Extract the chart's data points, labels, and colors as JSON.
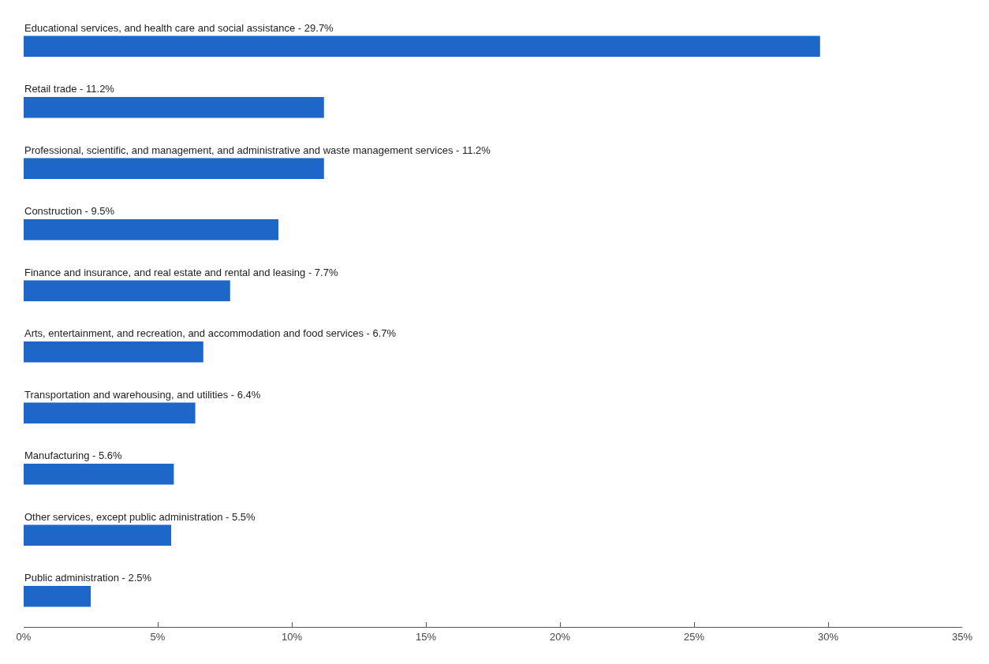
{
  "chart_data": {
    "type": "bar",
    "orientation": "horizontal",
    "categories": [
      "Educational services, and health care and social assistance - 29.7%",
      "Retail trade - 11.2%",
      "Professional, scientific, and management, and administrative and waste management services - 11.2%",
      "Construction - 9.5%",
      "Finance and insurance, and real estate and rental and leasing - 7.7%",
      "Arts, entertainment, and recreation, and accommodation and food services - 6.7%",
      "Transportation and warehousing, and utilities - 6.4%",
      "Manufacturing - 5.6%",
      "Other services, except public administration - 5.5%",
      "Public administration - 2.5%"
    ],
    "values": [
      29.7,
      11.2,
      11.2,
      9.5,
      7.7,
      6.7,
      6.4,
      5.6,
      5.5,
      2.5
    ],
    "color": "#1f66c9",
    "xlim": [
      0,
      35
    ],
    "xticks": [
      {
        "value": 0,
        "label": "0%"
      },
      {
        "value": 5,
        "label": "5%"
      },
      {
        "value": 10,
        "label": "10%"
      },
      {
        "value": 15,
        "label": "15%"
      },
      {
        "value": 20,
        "label": "20%"
      },
      {
        "value": 25,
        "label": "25%"
      },
      {
        "value": 30,
        "label": "30%"
      },
      {
        "value": 35,
        "label": "35%"
      }
    ],
    "grid": false,
    "legend": false
  }
}
